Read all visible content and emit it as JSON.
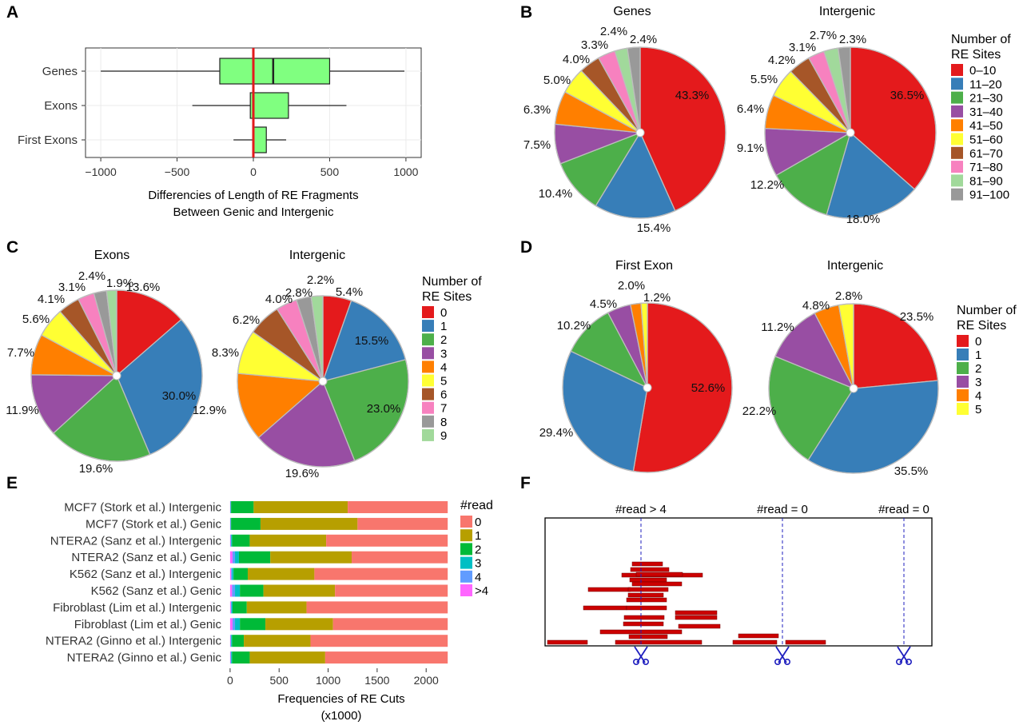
{
  "panels": {
    "A": "A",
    "B": "B",
    "C": "C",
    "D": "D",
    "E": "E",
    "F": "F"
  },
  "chart_data": [
    {
      "id": "A",
      "type": "boxplot",
      "orientation": "horizontal",
      "categories": [
        "Genes",
        "Exons",
        "First Exons"
      ],
      "boxes": [
        {
          "whisker_low": -1000,
          "q1": -220,
          "median": 130,
          "q3": 500,
          "whisker_high": 990
        },
        {
          "whisker_low": -400,
          "q1": -20,
          "median": 0,
          "q3": 230,
          "whisker_high": 610
        },
        {
          "whisker_low": -130,
          "q1": 0,
          "median": 0,
          "q3": 85,
          "whisker_high": 215
        }
      ],
      "xlabel_lines": [
        "Differencies of Length of RE Fragments",
        "Between Genic and Intergenic"
      ],
      "xticks": [
        -1000,
        -500,
        0,
        500,
        1000
      ],
      "xtick_labels": [
        "−1000",
        "−500",
        "0",
        "500",
        "1000"
      ],
      "xlim": [
        -1100,
        1100
      ],
      "reference_line": 0,
      "box_color": "#80ff80",
      "reference_color": "#e31a1c"
    },
    {
      "id": "B",
      "type": "pie",
      "legend_title_lines": [
        "Number of",
        "RE Sites"
      ],
      "legend": [
        "0–10",
        "11–20",
        "21–30",
        "31–40",
        "41–50",
        "51–60",
        "61–70",
        "71–80",
        "81–90",
        "91–100"
      ],
      "colors": [
        "#e41a1c",
        "#377eb8",
        "#4daf4a",
        "#984ea3",
        "#ff7f00",
        "#ffff33",
        "#a65628",
        "#f781bf",
        "#a1d99b",
        "#999999"
      ],
      "pies": [
        {
          "title": "Genes",
          "values": [
            43.3,
            15.4,
            10.4,
            7.5,
            6.3,
            5.0,
            4.0,
            3.3,
            2.4,
            2.4
          ],
          "labels": [
            "43.3%",
            "15.4%",
            "10.4%",
            "7.5%",
            "6.3%",
            "5.0%",
            "4.0%",
            "3.3%",
            "2.4%",
            "2.4%"
          ]
        },
        {
          "title": "Intergenic",
          "values": [
            36.5,
            18.0,
            12.2,
            9.1,
            6.4,
            5.5,
            4.2,
            3.1,
            2.7,
            2.3
          ],
          "labels": [
            "36.5%",
            "18.0%",
            "12.2%",
            "9.1%",
            "6.4%",
            "5.5%",
            "4.2%",
            "3.1%",
            "2.7%",
            "2.3%"
          ]
        }
      ]
    },
    {
      "id": "C",
      "type": "pie",
      "legend_title_lines": [
        "Number of",
        "RE Sites"
      ],
      "legend": [
        "0",
        "1",
        "2",
        "3",
        "4",
        "5",
        "6",
        "7",
        "8",
        "9"
      ],
      "colors": [
        "#e41a1c",
        "#377eb8",
        "#4daf4a",
        "#984ea3",
        "#ff7f00",
        "#ffff33",
        "#a65628",
        "#f781bf",
        "#999999",
        "#a1d99b"
      ],
      "pies": [
        {
          "title": "Exons",
          "values": [
            13.6,
            30.0,
            19.6,
            11.9,
            7.7,
            5.6,
            4.1,
            3.1,
            2.4,
            1.9
          ],
          "labels": [
            "13.6%",
            "30.0%",
            "19.6%",
            "11.9%",
            "7.7%",
            "5.6%",
            "4.1%",
            "3.1%",
            "2.4%",
            "1.9%"
          ]
        },
        {
          "title": "Intergenic",
          "values": [
            5.4,
            15.5,
            23.0,
            19.6,
            12.9,
            8.3,
            6.2,
            4.0,
            2.8,
            2.2
          ],
          "labels": [
            "5.4%",
            "15.5%",
            "23.0%",
            "19.6%",
            "12.9%",
            "8.3%",
            "6.2%",
            "4.0%",
            "2.8%",
            "2.2%"
          ]
        }
      ]
    },
    {
      "id": "D",
      "type": "pie",
      "legend_title_lines": [
        "Number of",
        "RE Sites"
      ],
      "legend": [
        "0",
        "1",
        "2",
        "3",
        "4",
        "5"
      ],
      "colors": [
        "#e41a1c",
        "#377eb8",
        "#4daf4a",
        "#984ea3",
        "#ff7f00",
        "#ffff33"
      ],
      "pies": [
        {
          "title": "First Exon",
          "values": [
            52.6,
            29.4,
            10.2,
            4.5,
            2.0,
            1.2
          ],
          "labels": [
            "52.6%",
            "29.4%",
            "10.2%",
            "4.5%",
            "2.0%",
            "1.2%"
          ]
        },
        {
          "title": "Intergenic",
          "values": [
            23.5,
            35.5,
            22.2,
            11.2,
            4.8,
            2.8
          ],
          "labels": [
            "23.5%",
            "35.5%",
            "22.2%",
            "11.2%",
            "4.8%",
            "2.8%"
          ]
        }
      ]
    },
    {
      "id": "E",
      "type": "bar",
      "orientation": "horizontal",
      "stacked": true,
      "categories": [
        "MCF7 (Stork et al.) Intergenic",
        "MCF7 (Stork et al.) Genic",
        "NTERA2 (Sanz et al.) Intergenic",
        "NTERA2 (Sanz et al.) Genic",
        "K562 (Sanz et al.) Intergenic",
        "K562 (Sanz et al.) Genic",
        "Fibroblast (Lim et al.) Intergenic",
        "Fibroblast (Lim et al.) Genic",
        "NTERA2 (Ginno et al.) Intergenic",
        "NTERA2 (Ginno et al.) Genic"
      ],
      "legend_title": "#read",
      "series": [
        {
          "name": ">4",
          "color": "#ff66ff",
          "values": [
            3,
            3,
            5,
            25,
            10,
            20,
            8,
            25,
            5,
            5
          ]
        },
        {
          "name": "4",
          "color": "#619cff",
          "values": [
            2,
            2,
            5,
            25,
            10,
            30,
            6,
            25,
            5,
            5
          ]
        },
        {
          "name": "3",
          "color": "#00bfc4",
          "values": [
            5,
            5,
            10,
            40,
            15,
            50,
            11,
            50,
            10,
            10
          ]
        },
        {
          "name": "2",
          "color": "#00ba38",
          "values": [
            230,
            300,
            180,
            320,
            145,
            240,
            145,
            260,
            120,
            180
          ]
        },
        {
          "name": "1",
          "color": "#b79f00",
          "values": [
            960,
            990,
            780,
            830,
            680,
            730,
            610,
            690,
            680,
            770
          ]
        },
        {
          "name": "0",
          "color": "#f8766d",
          "values": [
            1020,
            920,
            1240,
            980,
            1360,
            1150,
            1440,
            1170,
            1400,
            1250
          ]
        }
      ],
      "legend_order": [
        "0",
        "1",
        "2",
        "3",
        "4",
        ">4"
      ],
      "xlabel_lines": [
        "Frequencies of RE Cuts",
        "(x1000)"
      ],
      "xticks": [
        0,
        500,
        1000,
        1500,
        2000
      ],
      "xtick_labels": [
        "0",
        "500",
        "1000",
        "1500",
        "2000"
      ],
      "xlim": [
        -40,
        2300
      ]
    },
    {
      "id": "F",
      "type": "schematic",
      "cut_site_labels": [
        "#read > 4",
        "#read = 0",
        "#read = 0"
      ],
      "read_color": "#cc0000",
      "cut_color": "#1f1fbf"
    }
  ]
}
